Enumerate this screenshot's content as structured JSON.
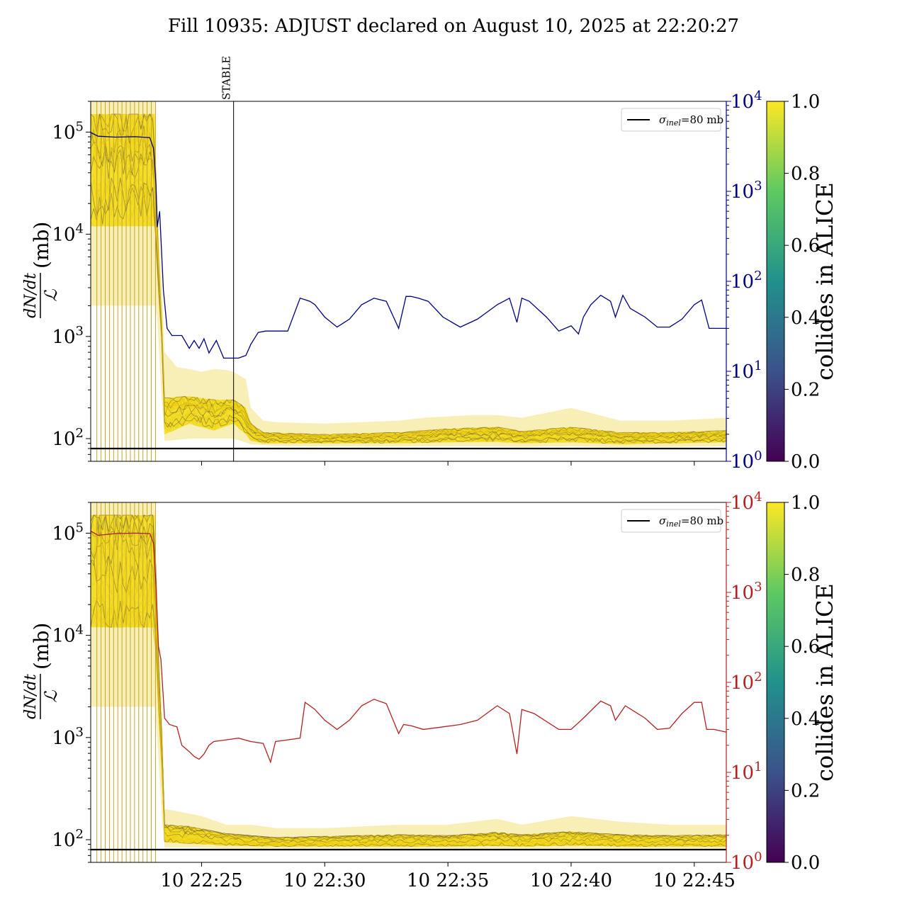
{
  "figure": {
    "title": "Fill 10935: ADJUST declared on August 10, 2025 at 22:20:27"
  },
  "colors": {
    "top_right_axis": "#000080",
    "bottom_right_axis": "#b22222",
    "reference_line": "#000000",
    "yellow_band": "#f2dd1a",
    "dark_band": "#6b5a2e",
    "colorbar_stops": [
      "#440154",
      "#3b528b",
      "#21918c",
      "#5ec962",
      "#fde725"
    ]
  },
  "chart_data": [
    {
      "id": "top",
      "type": "line",
      "y_label": "dN/dt / ℒ (mb)",
      "y_label_parts": {
        "num": "dN/dt",
        "den": "ℒ",
        "unit": "(mb)"
      },
      "y_scale": "log",
      "ylim": [
        60,
        200000
      ],
      "y_ticks": [
        {
          "value": 100,
          "label": "10",
          "exp": "2"
        },
        {
          "value": 1000,
          "label": "10",
          "exp": "3"
        },
        {
          "value": 10000,
          "label": "10",
          "exp": "4"
        },
        {
          "value": 100000,
          "label": "10",
          "exp": "5"
        }
      ],
      "right_axis": {
        "scale": "log",
        "ylim": [
          1,
          10000
        ],
        "color": "#000080",
        "ticks": [
          {
            "value": 1,
            "label": "10",
            "exp": "0"
          },
          {
            "value": 10,
            "label": "10",
            "exp": "1"
          },
          {
            "value": 100,
            "label": "10",
            "exp": "2"
          },
          {
            "value": 1000,
            "label": "10",
            "exp": "3"
          },
          {
            "value": 10000,
            "label": "10",
            "exp": "4"
          }
        ]
      },
      "x_range_min": [
        20.5,
        46.3
      ],
      "x_ticks_min": [
        25,
        30,
        35,
        40,
        45
      ],
      "x_tick_labels": [],
      "annotation": {
        "label": "STABLE",
        "x_min": 26.3
      },
      "legend": {
        "label_sym": "σ",
        "label_sub": "inel",
        "label_rest": "=80 mb",
        "placement": "upper right"
      },
      "reference_line_value": 80,
      "right_series": {
        "name": "",
        "x": [
          20.5,
          20.8,
          21.5,
          22.3,
          22.9,
          23.05,
          23.15,
          23.2,
          23.3,
          23.45,
          23.6,
          23.8,
          24.2,
          24.5,
          24.7,
          24.9,
          25.1,
          25.3,
          25.6,
          25.9,
          26.2,
          26.5,
          26.8,
          27.0,
          27.3,
          27.6,
          28.0,
          28.5,
          29.0,
          29.4,
          29.6,
          30.0,
          30.5,
          31.0,
          31.5,
          32.0,
          32.5,
          33.0,
          33.3,
          33.5,
          33.8,
          34.2,
          34.8,
          35.5,
          36.2,
          37.0,
          37.5,
          37.8,
          38.0,
          38.3,
          39.0,
          39.5,
          40.0,
          40.3,
          40.5,
          40.8,
          41.2,
          41.6,
          41.8,
          42.1,
          42.4,
          43.0,
          43.5,
          44.0,
          44.5,
          45.0,
          45.3,
          45.6,
          46.3
        ],
        "values": [
          4500,
          4100,
          4000,
          4050,
          3950,
          3000,
          1200,
          400,
          600,
          80,
          30,
          25,
          25,
          18,
          22,
          18,
          23,
          16,
          22,
          14,
          14,
          14,
          15,
          20,
          27,
          28,
          28,
          28,
          65,
          60,
          55,
          40,
          31,
          38,
          55,
          65,
          60,
          30,
          68,
          68,
          65,
          60,
          40,
          31,
          38,
          55,
          65,
          35,
          65,
          60,
          40,
          28,
          32,
          26,
          40,
          55,
          70,
          60,
          40,
          70,
          50,
          40,
          31,
          31,
          38,
          55,
          62,
          30,
          30
        ]
      },
      "bands": {
        "upper": [
          [
            20.5,
            200000
          ],
          [
            23.1,
            200000
          ],
          [
            23.2,
            20000
          ],
          [
            23.4,
            3000
          ],
          [
            23.5,
            700
          ],
          [
            24.0,
            500
          ],
          [
            24.5,
            480
          ],
          [
            25.0,
            450
          ],
          [
            25.5,
            480
          ],
          [
            26.0,
            470
          ],
          [
            26.3,
            450
          ],
          [
            26.8,
            380
          ],
          [
            27.0,
            200
          ],
          [
            27.5,
            150
          ],
          [
            28.0,
            145
          ],
          [
            30.0,
            140
          ],
          [
            33.0,
            150
          ],
          [
            34.0,
            160
          ],
          [
            36.0,
            170
          ],
          [
            37.0,
            170
          ],
          [
            38.0,
            160
          ],
          [
            40.0,
            200
          ],
          [
            42.0,
            150
          ],
          [
            44.0,
            150
          ],
          [
            46.3,
            160
          ]
        ],
        "core_upper": [
          [
            20.5,
            150000
          ],
          [
            23.1,
            150000
          ],
          [
            23.2,
            10000
          ],
          [
            23.4,
            1200
          ],
          [
            23.5,
            250
          ],
          [
            24.5,
            260
          ],
          [
            25.5,
            240
          ],
          [
            26.3,
            240
          ],
          [
            26.8,
            200
          ],
          [
            27.0,
            140
          ],
          [
            27.5,
            115
          ],
          [
            30.0,
            110
          ],
          [
            33.0,
            115
          ],
          [
            35.0,
            125
          ],
          [
            37.0,
            130
          ],
          [
            38.0,
            118
          ],
          [
            40.0,
            130
          ],
          [
            42.0,
            115
          ],
          [
            44.0,
            115
          ],
          [
            46.3,
            120
          ]
        ],
        "core_lower": [
          [
            20.5,
            12000
          ],
          [
            23.1,
            12000
          ],
          [
            23.2,
            4000
          ],
          [
            23.4,
            700
          ],
          [
            23.5,
            110
          ],
          [
            24.5,
            140
          ],
          [
            25.5,
            120
          ],
          [
            26.3,
            140
          ],
          [
            26.8,
            110
          ],
          [
            27.0,
            95
          ],
          [
            27.5,
            90
          ],
          [
            30.0,
            90
          ],
          [
            33.0,
            90
          ],
          [
            35.0,
            92
          ],
          [
            37.0,
            93
          ],
          [
            38.0,
            90
          ],
          [
            40.0,
            92
          ],
          [
            42.0,
            88
          ],
          [
            44.0,
            90
          ],
          [
            46.3,
            92
          ]
        ],
        "lower": [
          [
            20.5,
            2000
          ],
          [
            23.1,
            2000
          ],
          [
            23.2,
            1500
          ],
          [
            23.4,
            200
          ],
          [
            23.5,
            95
          ],
          [
            24.5,
            100
          ],
          [
            25.5,
            100
          ],
          [
            26.3,
            100
          ],
          [
            27.0,
            88
          ],
          [
            28.0,
            85
          ],
          [
            30.0,
            84
          ],
          [
            33.0,
            84
          ],
          [
            36.0,
            84
          ],
          [
            38.0,
            83
          ],
          [
            40.0,
            84
          ],
          [
            42.0,
            82
          ],
          [
            44.0,
            83
          ],
          [
            46.3,
            84
          ]
        ]
      },
      "colorbar": {
        "label": "collides in ALICE",
        "range": [
          0,
          1
        ],
        "ticks": [
          "0.0",
          "0.2",
          "0.4",
          "0.6",
          "0.8",
          "1.0"
        ]
      }
    },
    {
      "id": "bottom",
      "type": "line",
      "y_label": "dN/dt / ℒ (mb)",
      "y_label_parts": {
        "num": "dN/dt",
        "den": "ℒ",
        "unit": "(mb)"
      },
      "y_scale": "log",
      "ylim": [
        60,
        200000
      ],
      "y_ticks": [
        {
          "value": 100,
          "label": "10",
          "exp": "2"
        },
        {
          "value": 1000,
          "label": "10",
          "exp": "3"
        },
        {
          "value": 10000,
          "label": "10",
          "exp": "4"
        },
        {
          "value": 100000,
          "label": "10",
          "exp": "5"
        }
      ],
      "right_axis": {
        "scale": "log",
        "ylim": [
          1,
          10000
        ],
        "color": "#b22222",
        "ticks": [
          {
            "value": 1,
            "label": "10",
            "exp": "0"
          },
          {
            "value": 10,
            "label": "10",
            "exp": "1"
          },
          {
            "value": 100,
            "label": "10",
            "exp": "2"
          },
          {
            "value": 1000,
            "label": "10",
            "exp": "3"
          },
          {
            "value": 10000,
            "label": "10",
            "exp": "4"
          }
        ]
      },
      "x_range_min": [
        20.5,
        46.3
      ],
      "x_ticks_min": [
        25,
        30,
        35,
        40,
        45
      ],
      "x_tick_labels": [
        "10 22:25",
        "10 22:30",
        "10 22:35",
        "10 22:40",
        "10 22:45"
      ],
      "legend": {
        "label_sym": "σ",
        "label_sub": "inel",
        "label_rest": "=80 mb",
        "placement": "upper right"
      },
      "reference_line_value": 80,
      "right_series": {
        "name": "",
        "x": [
          20.5,
          20.8,
          21.5,
          22.3,
          22.9,
          23.05,
          23.15,
          23.25,
          23.35,
          23.5,
          23.7,
          24.0,
          24.2,
          24.5,
          24.7,
          24.9,
          25.1,
          25.3,
          25.5,
          26.0,
          26.5,
          27.0,
          27.5,
          27.8,
          28.0,
          28.5,
          29.0,
          29.2,
          29.4,
          29.6,
          30.0,
          30.5,
          31.0,
          31.5,
          32.0,
          32.5,
          33.0,
          33.2,
          33.5,
          34.0,
          34.8,
          35.5,
          36.2,
          37.0,
          37.5,
          37.8,
          38.0,
          38.5,
          39.5,
          40.0,
          40.5,
          41.2,
          41.6,
          41.8,
          42.2,
          43.0,
          43.5,
          44.0,
          44.5,
          45.0,
          45.3,
          45.5,
          45.8,
          46.3
        ],
        "values": [
          4800,
          4300,
          4500,
          4550,
          4500,
          3500,
          1200,
          250,
          180,
          40,
          34,
          32,
          20,
          17,
          15,
          14,
          16,
          20,
          22,
          23,
          24,
          22,
          21,
          13,
          22,
          23,
          24,
          60,
          55,
          50,
          38,
          30,
          38,
          55,
          65,
          58,
          27,
          34,
          33,
          30,
          32,
          34,
          38,
          55,
          45,
          16,
          50,
          45,
          30,
          30,
          40,
          62,
          55,
          38,
          55,
          40,
          30,
          31,
          45,
          60,
          60,
          30,
          30,
          28
        ]
      },
      "bands": {
        "upper": [
          [
            20.5,
            200000
          ],
          [
            23.1,
            200000
          ],
          [
            23.2,
            20000
          ],
          [
            23.4,
            2000
          ],
          [
            23.5,
            200
          ],
          [
            24.0,
            190
          ],
          [
            24.5,
            180
          ],
          [
            25.0,
            170
          ],
          [
            26.0,
            140
          ],
          [
            27.0,
            140
          ],
          [
            28.0,
            130
          ],
          [
            30.0,
            130
          ],
          [
            33.0,
            140
          ],
          [
            35.0,
            140
          ],
          [
            37.0,
            160
          ],
          [
            38.0,
            140
          ],
          [
            40.0,
            170
          ],
          [
            42.0,
            150
          ],
          [
            44.0,
            140
          ],
          [
            46.3,
            140
          ]
        ],
        "core_upper": [
          [
            20.5,
            150000
          ],
          [
            23.1,
            150000
          ],
          [
            23.2,
            10000
          ],
          [
            23.4,
            900
          ],
          [
            23.5,
            140
          ],
          [
            24.5,
            135
          ],
          [
            26.0,
            115
          ],
          [
            28.0,
            105
          ],
          [
            30.0,
            108
          ],
          [
            33.0,
            112
          ],
          [
            35.0,
            110
          ],
          [
            37.0,
            118
          ],
          [
            38.0,
            112
          ],
          [
            40.0,
            120
          ],
          [
            42.0,
            112
          ],
          [
            44.0,
            110
          ],
          [
            46.3,
            112
          ]
        ],
        "core_lower": [
          [
            20.5,
            12000
          ],
          [
            23.1,
            12000
          ],
          [
            23.2,
            3000
          ],
          [
            23.4,
            400
          ],
          [
            23.5,
            95
          ],
          [
            24.5,
            92
          ],
          [
            26.0,
            88
          ],
          [
            28.0,
            86
          ],
          [
            30.0,
            86
          ],
          [
            33.0,
            86
          ],
          [
            35.0,
            86
          ],
          [
            37.0,
            87
          ],
          [
            38.0,
            86
          ],
          [
            40.0,
            88
          ],
          [
            42.0,
            86
          ],
          [
            44.0,
            86
          ],
          [
            46.3,
            86
          ]
        ],
        "lower": [
          [
            20.5,
            2000
          ],
          [
            23.1,
            2000
          ],
          [
            23.2,
            1000
          ],
          [
            23.4,
            150
          ],
          [
            23.5,
            84
          ],
          [
            24.5,
            84
          ],
          [
            26.0,
            82
          ],
          [
            28.0,
            82
          ],
          [
            30.0,
            82
          ],
          [
            33.0,
            82
          ],
          [
            36.0,
            82
          ],
          [
            38.0,
            82
          ],
          [
            40.0,
            82
          ],
          [
            42.0,
            81
          ],
          [
            44.0,
            82
          ],
          [
            46.3,
            82
          ]
        ]
      },
      "colorbar": {
        "label": "collides in ALICE",
        "range": [
          0,
          1
        ],
        "ticks": [
          "0.0",
          "0.2",
          "0.4",
          "0.6",
          "0.8",
          "1.0"
        ]
      }
    }
  ]
}
